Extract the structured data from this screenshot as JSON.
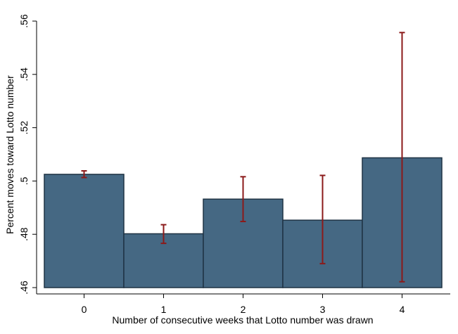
{
  "chart_data": {
    "type": "bar",
    "title": "",
    "xlabel": "Number of consecutive weeks that Lotto number was drawn",
    "ylabel": "Percent moves toward Lotto number",
    "categories": [
      "0",
      "1",
      "2",
      "3",
      "4"
    ],
    "values": [
      0.5025,
      0.4802,
      0.4932,
      0.4853,
      0.5087
    ],
    "error_low": [
      0.5013,
      0.4766,
      0.4848,
      0.469,
      0.4622
    ],
    "error_high": [
      0.5038,
      0.4836,
      0.5016,
      0.5021,
      0.5557
    ],
    "ylim": [
      0.46,
      0.56
    ],
    "yticks": [
      0.46,
      0.48,
      0.5,
      0.52,
      0.54,
      0.56
    ],
    "ytick_labels": [
      ".46",
      ".48",
      ".5",
      ".52",
      ".54",
      ".56"
    ],
    "grid": false,
    "legend": "none",
    "colors": {
      "bar_fill": "#456883",
      "bar_edge": "#1f3344",
      "error_bar": "#8b1a1a"
    }
  }
}
